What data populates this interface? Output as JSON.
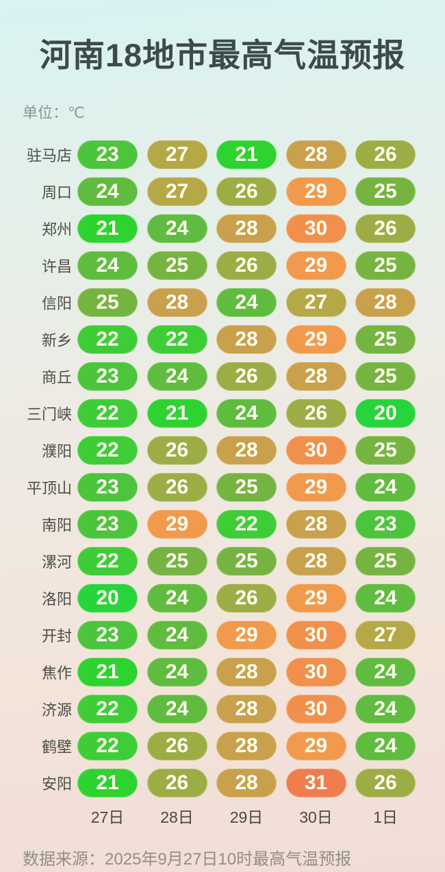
{
  "page": {
    "title": "河南18地市最高气温预报",
    "unit_label": "单位：℃",
    "source": "数据来源：2025年9月27日10时最高气温预报"
  },
  "chart_data": {
    "type": "heatmap",
    "title": "河南18地市最高气温预报",
    "unit": "℃",
    "columns": [
      "27日",
      "28日",
      "29日",
      "30日",
      "1日"
    ],
    "rows": [
      {
        "city": "驻马店",
        "values": [
          23,
          27,
          21,
          28,
          26
        ]
      },
      {
        "city": "周口",
        "values": [
          24,
          27,
          26,
          29,
          25
        ]
      },
      {
        "city": "郑州",
        "values": [
          21,
          24,
          28,
          30,
          26
        ]
      },
      {
        "city": "许昌",
        "values": [
          24,
          25,
          26,
          29,
          25
        ]
      },
      {
        "city": "信阳",
        "values": [
          25,
          28,
          24,
          27,
          28
        ]
      },
      {
        "city": "新乡",
        "values": [
          22,
          22,
          28,
          29,
          25
        ]
      },
      {
        "city": "商丘",
        "values": [
          23,
          24,
          26,
          28,
          25
        ]
      },
      {
        "city": "三门峡",
        "values": [
          22,
          21,
          24,
          26,
          20
        ]
      },
      {
        "city": "濮阳",
        "values": [
          22,
          26,
          28,
          30,
          25
        ]
      },
      {
        "city": "平顶山",
        "values": [
          23,
          26,
          25,
          29,
          24
        ]
      },
      {
        "city": "南阳",
        "values": [
          23,
          29,
          22,
          28,
          23
        ]
      },
      {
        "city": "漯河",
        "values": [
          22,
          25,
          25,
          28,
          25
        ]
      },
      {
        "city": "洛阳",
        "values": [
          20,
          24,
          26,
          29,
          24
        ]
      },
      {
        "city": "开封",
        "values": [
          23,
          24,
          29,
          30,
          27
        ]
      },
      {
        "city": "焦作",
        "values": [
          21,
          24,
          28,
          30,
          24
        ]
      },
      {
        "city": "济源",
        "values": [
          22,
          24,
          28,
          30,
          24
        ]
      },
      {
        "city": "鹤壁",
        "values": [
          22,
          26,
          28,
          29,
          24
        ]
      },
      {
        "city": "安阳",
        "values": [
          21,
          26,
          28,
          31,
          26
        ]
      }
    ],
    "source": "数据来源：2025年9月27日10时最高气温预报",
    "value_range": [
      20,
      31
    ],
    "legend": "none",
    "color_scale": {
      "20": "#27d43c",
      "21": "#2ed32f",
      "22": "#3ecd36",
      "23": "#4cc43c",
      "24": "#5fbc3f",
      "25": "#76b441",
      "26": "#9dad45",
      "27": "#b5a847",
      "28": "#c9a14c",
      "29": "#f19a4d",
      "30": "#f1904c",
      "31": "#ef7d4e"
    },
    "pill_text_color": "#fffdf0"
  }
}
